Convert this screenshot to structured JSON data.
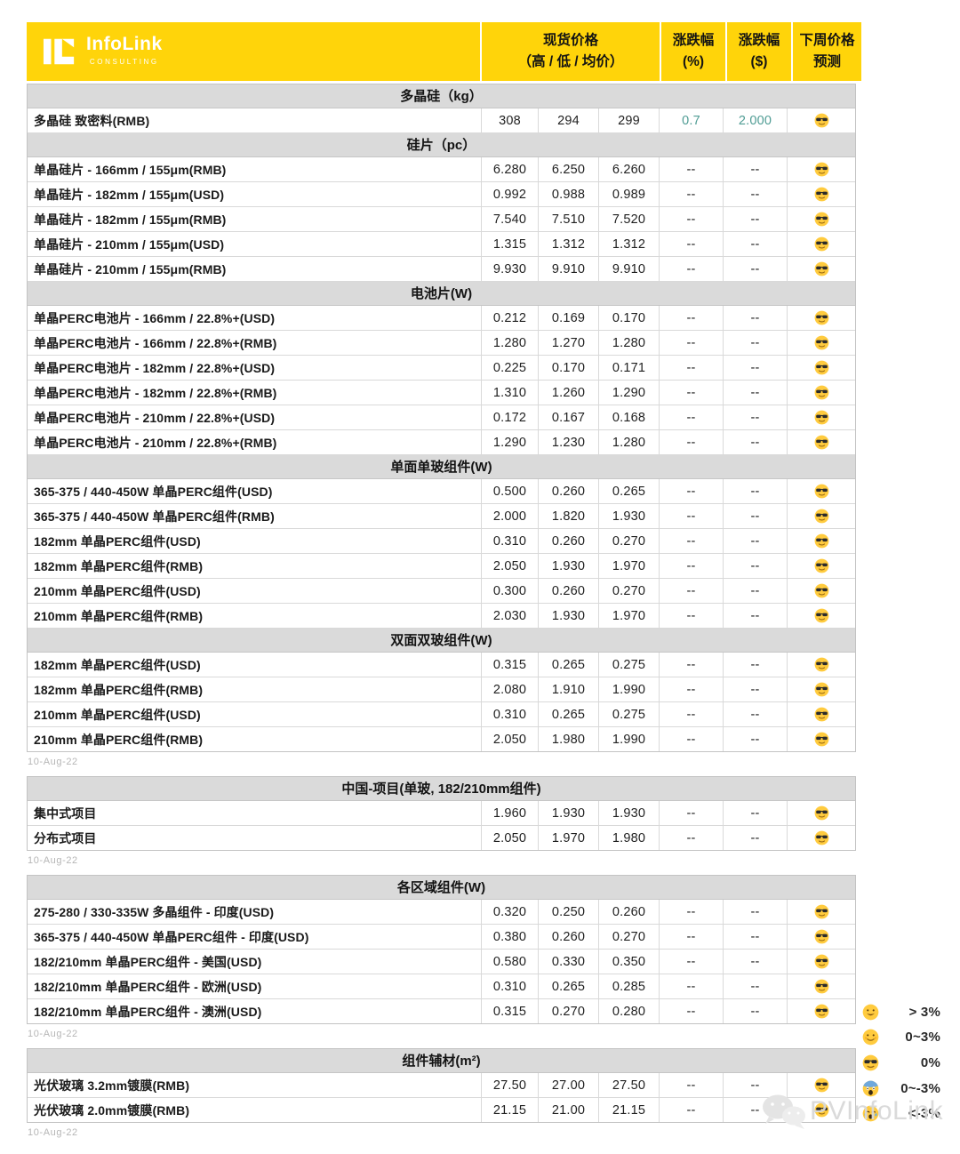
{
  "brand": {
    "name": "InfoLink",
    "subtitle": "CONSULTING"
  },
  "header": {
    "spot_line1": "现货价格",
    "spot_line2": "（高 / 低 / 均价）",
    "pct_line1": "涨跌幅",
    "pct_line2": "(%)",
    "usd_line1": "涨跌幅",
    "usd_line2": "($)",
    "forecast_line1": "下周价格",
    "forecast_line2": "预测"
  },
  "colors": {
    "accent_yellow": "#FFD40A",
    "section_gray": "#DADADA",
    "positive_teal": "#4F9C94"
  },
  "blocks": [
    {
      "date": "10-Aug-22",
      "sections": [
        {
          "title": "多晶硅（kg）",
          "rows": [
            {
              "name": "多晶硅 致密料(RMB)",
              "high": "308",
              "low": "294",
              "avg": "299",
              "pct": "0.7",
              "usd": "2.000",
              "positive": true,
              "forecast": "cool-face"
            }
          ]
        },
        {
          "title": "硅片（pc）",
          "rows": [
            {
              "name": "单晶硅片 - 166mm / 155μm(RMB)",
              "high": "6.280",
              "low": "6.250",
              "avg": "6.260",
              "pct": "--",
              "usd": "--",
              "forecast": "cool-face"
            },
            {
              "name": "单晶硅片 - 182mm / 155μm(USD)",
              "high": "0.992",
              "low": "0.988",
              "avg": "0.989",
              "pct": "--",
              "usd": "--",
              "forecast": "cool-face"
            },
            {
              "name": "单晶硅片 - 182mm / 155μm(RMB)",
              "high": "7.540",
              "low": "7.510",
              "avg": "7.520",
              "pct": "--",
              "usd": "--",
              "forecast": "cool-face"
            },
            {
              "name": "单晶硅片 - 210mm / 155μm(USD)",
              "high": "1.315",
              "low": "1.312",
              "avg": "1.312",
              "pct": "--",
              "usd": "--",
              "forecast": "cool-face"
            },
            {
              "name": "单晶硅片 - 210mm / 155μm(RMB)",
              "high": "9.930",
              "low": "9.910",
              "avg": "9.910",
              "pct": "--",
              "usd": "--",
              "forecast": "cool-face"
            }
          ]
        },
        {
          "title": "电池片(W)",
          "rows": [
            {
              "name": "单晶PERC电池片 - 166mm / 22.8%+(USD)",
              "high": "0.212",
              "low": "0.169",
              "avg": "0.170",
              "pct": "--",
              "usd": "--",
              "forecast": "cool-face"
            },
            {
              "name": "单晶PERC电池片 - 166mm / 22.8%+(RMB)",
              "high": "1.280",
              "low": "1.270",
              "avg": "1.280",
              "pct": "--",
              "usd": "--",
              "forecast": "cool-face"
            },
            {
              "name": "单晶PERC电池片 - 182mm / 22.8%+(USD)",
              "high": "0.225",
              "low": "0.170",
              "avg": "0.171",
              "pct": "--",
              "usd": "--",
              "forecast": "cool-face"
            },
            {
              "name": "单晶PERC电池片 - 182mm / 22.8%+(RMB)",
              "high": "1.310",
              "low": "1.260",
              "avg": "1.290",
              "pct": "--",
              "usd": "--",
              "forecast": "cool-face"
            },
            {
              "name": "单晶PERC电池片 - 210mm / 22.8%+(USD)",
              "high": "0.172",
              "low": "0.167",
              "avg": "0.168",
              "pct": "--",
              "usd": "--",
              "forecast": "cool-face"
            },
            {
              "name": "单晶PERC电池片 - 210mm / 22.8%+(RMB)",
              "high": "1.290",
              "low": "1.230",
              "avg": "1.280",
              "pct": "--",
              "usd": "--",
              "forecast": "cool-face"
            }
          ]
        },
        {
          "title": "单面单玻组件(W)",
          "rows": [
            {
              "name": "365-375 / 440-450W 单晶PERC组件(USD)",
              "high": "0.500",
              "low": "0.260",
              "avg": "0.265",
              "pct": "--",
              "usd": "--",
              "forecast": "cool-face"
            },
            {
              "name": "365-375 / 440-450W 单晶PERC组件(RMB)",
              "high": "2.000",
              "low": "1.820",
              "avg": "1.930",
              "pct": "--",
              "usd": "--",
              "forecast": "cool-face"
            },
            {
              "name": "182mm 单晶PERC组件(USD)",
              "high": "0.310",
              "low": "0.260",
              "avg": "0.270",
              "pct": "--",
              "usd": "--",
              "forecast": "cool-face"
            },
            {
              "name": "182mm 单晶PERC组件(RMB)",
              "high": "2.050",
              "low": "1.930",
              "avg": "1.970",
              "pct": "--",
              "usd": "--",
              "forecast": "cool-face"
            },
            {
              "name": "210mm 单晶PERC组件(USD)",
              "high": "0.300",
              "low": "0.260",
              "avg": "0.270",
              "pct": "--",
              "usd": "--",
              "forecast": "cool-face"
            },
            {
              "name": "210mm 单晶PERC组件(RMB)",
              "high": "2.030",
              "low": "1.930",
              "avg": "1.970",
              "pct": "--",
              "usd": "--",
              "forecast": "cool-face"
            }
          ]
        },
        {
          "title": "双面双玻组件(W)",
          "rows": [
            {
              "name": "182mm 单晶PERC组件(USD)",
              "high": "0.315",
              "low": "0.265",
              "avg": "0.275",
              "pct": "--",
              "usd": "--",
              "forecast": "cool-face"
            },
            {
              "name": "182mm 单晶PERC组件(RMB)",
              "high": "2.080",
              "low": "1.910",
              "avg": "1.990",
              "pct": "--",
              "usd": "--",
              "forecast": "cool-face"
            },
            {
              "name": "210mm 单晶PERC组件(USD)",
              "high": "0.310",
              "low": "0.265",
              "avg": "0.275",
              "pct": "--",
              "usd": "--",
              "forecast": "cool-face"
            },
            {
              "name": "210mm 单晶PERC组件(RMB)",
              "high": "2.050",
              "low": "1.980",
              "avg": "1.990",
              "pct": "--",
              "usd": "--",
              "forecast": "cool-face"
            }
          ]
        }
      ]
    },
    {
      "date": "10-Aug-22",
      "sections": [
        {
          "title": "中国-项目(单玻, 182/210mm组件)",
          "rows": [
            {
              "name": "集中式项目",
              "high": "1.960",
              "low": "1.930",
              "avg": "1.930",
              "pct": "--",
              "usd": "--",
              "forecast": "cool-face"
            },
            {
              "name": "分布式项目",
              "high": "2.050",
              "low": "1.970",
              "avg": "1.980",
              "pct": "--",
              "usd": "--",
              "forecast": "cool-face"
            }
          ]
        }
      ]
    },
    {
      "date": "10-Aug-22",
      "sections": [
        {
          "title": "各区域组件(W)",
          "rows": [
            {
              "name": "275-280 / 330-335W 多晶组件 - 印度(USD)",
              "high": "0.320",
              "low": "0.250",
              "avg": "0.260",
              "pct": "--",
              "usd": "--",
              "forecast": "cool-face"
            },
            {
              "name": "365-375 / 440-450W 单晶PERC组件 - 印度(USD)",
              "high": "0.380",
              "low": "0.260",
              "avg": "0.270",
              "pct": "--",
              "usd": "--",
              "forecast": "cool-face"
            },
            {
              "name": "182/210mm 单晶PERC组件 - 美国(USD)",
              "high": "0.580",
              "low": "0.330",
              "avg": "0.350",
              "pct": "--",
              "usd": "--",
              "forecast": "cool-face"
            },
            {
              "name": "182/210mm 单晶PERC组件 - 欧洲(USD)",
              "high": "0.310",
              "low": "0.265",
              "avg": "0.285",
              "pct": "--",
              "usd": "--",
              "forecast": "cool-face"
            },
            {
              "name": "182/210mm 单晶PERC组件 - 澳洲(USD)",
              "high": "0.315",
              "low": "0.270",
              "avg": "0.280",
              "pct": "--",
              "usd": "--",
              "forecast": "cool-face"
            }
          ]
        }
      ]
    },
    {
      "date": "10-Aug-22",
      "sections": [
        {
          "title": "组件辅材(m²)",
          "rows": [
            {
              "name": "光伏玻璃 3.2mm镀膜(RMB)",
              "high": "27.50",
              "low": "27.00",
              "avg": "27.50",
              "pct": "--",
              "usd": "--",
              "forecast": "cool-face"
            },
            {
              "name": "光伏玻璃 2.0mm镀膜(RMB)",
              "high": "21.15",
              "low": "21.00",
              "avg": "21.15",
              "pct": "--",
              "usd": "--",
              "forecast": "cool-face"
            }
          ]
        }
      ]
    }
  ],
  "legend": [
    {
      "icon": "grin-face",
      "label": "> 3%"
    },
    {
      "icon": "smile-face",
      "label": "0~3%"
    },
    {
      "icon": "cool-face",
      "label": "0%"
    },
    {
      "icon": "scream-face",
      "label": "0~-3%"
    },
    {
      "icon": "cry-face",
      "label": "<-3%"
    }
  ],
  "watermark": {
    "text": "PVInfoLink"
  }
}
